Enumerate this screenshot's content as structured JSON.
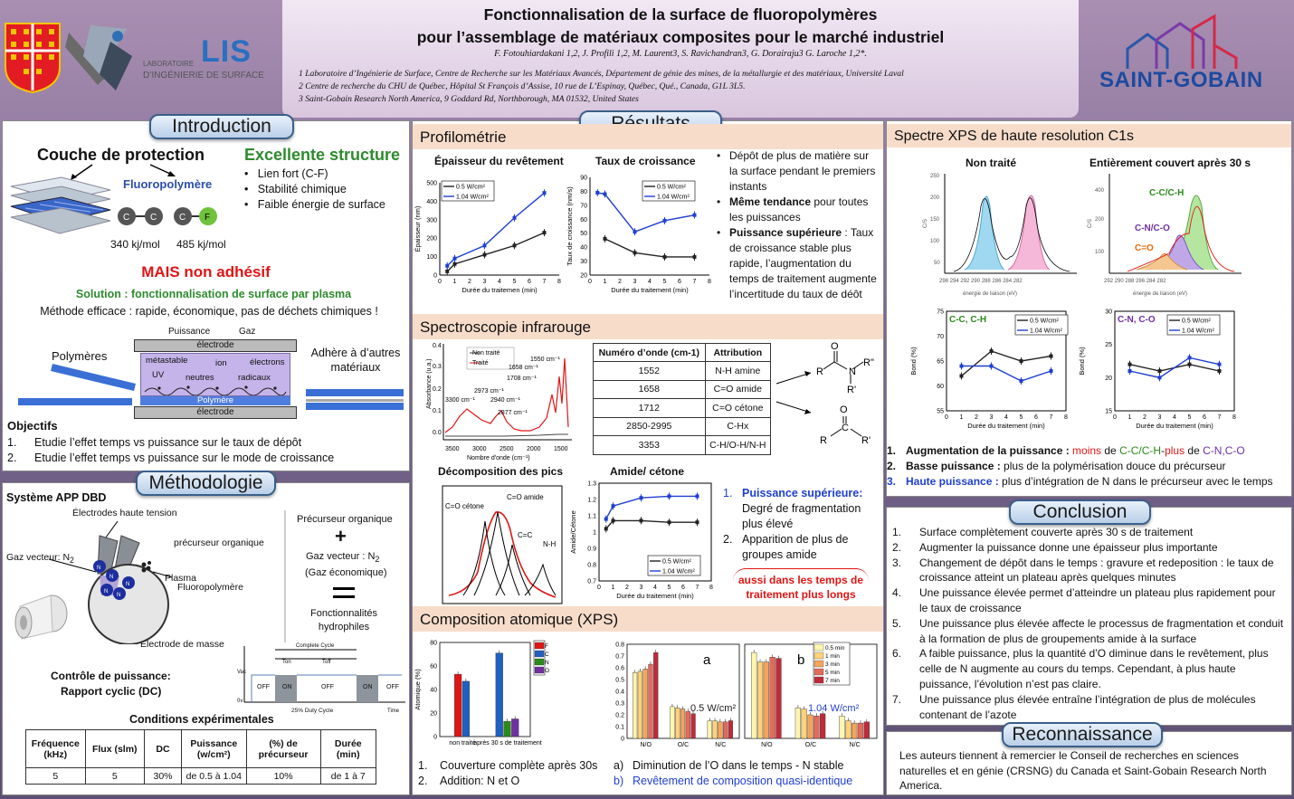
{
  "header": {
    "title1": "Fonctionnalisation de la surface de fluoropolymères",
    "title2": "pour l’assemblage de matériaux composites pour le marché industriel",
    "authors": "F. Fotouhiardakani 1,2, J. Profili 1,2, M. Laurent3, S. Ravichandran3, G. Dorairaju3 G. Laroche 1,2*.",
    "aff1": "1 Laboratoire d’Ingénierie de Surface, Centre de Recherche sur les Matériaux Avancés, Département de génie des mines, de la métallurgie et des matériaux, Université Laval",
    "aff2": "2 Centre de recherche du CHU de Québec, Hôpital St François d’Assise, 10 rue de L’Espinay, Québec, Qué., Canada, G1L 3L5.",
    "aff3": "3 Saint-Gobain Research North America, 9 Goddard Rd, Northborough, MA 01532, United States",
    "lis_small1": "LABORATOIRE",
    "lis_small2": "D’INGÉNIERIE DE SURFACE",
    "lis_big": "LIS",
    "sg": "SAINT-GOBAIN"
  },
  "intro": {
    "heading": "Introduction",
    "couche": "Couche de protection",
    "fluoro": "Fluoropolymère",
    "excellente": "Excellente structure",
    "bullets": [
      "Lien fort (C-F)",
      "Stabilité chimique",
      "Faible énergie de surface"
    ],
    "e1": "340 kj/mol",
    "e2": "485 kj/mol",
    "mais": "MAIS non adhésif",
    "solution": "Solution : fonctionnalisation de surface par plasma",
    "methode": "Méthode  efficace : rapide, économique,  pas de déchets chimiques !",
    "puissance": "Puissance",
    "gaz": "Gaz",
    "electrode": "électrode",
    "electrode2": "électrode",
    "metastable": "métastable",
    "ion": "ion",
    "electrons": "électrons",
    "uv": "UV",
    "neutres": "neutres",
    "radicaux": "radicaux",
    "polymere": "Polymère",
    "polymeres": "Polymères",
    "adhese": "Adhère à d’autres matériaux",
    "objectifs": "Objectifs",
    "obj": [
      {
        "n": "1.",
        "t": "Etudie l’effet temps vs puissance sur le taux de dépôt"
      },
      {
        "n": "2.",
        "t": "Etudie l’effet temps vs puissance sur le mode de croissance"
      }
    ]
  },
  "methodo": {
    "heading": "Méthodologie",
    "systeme": "Système APP DBD",
    "electrodes_ht": "Électrodes haute tension",
    "gaz_vecteur": "Gaz vecteur: N",
    "precurseur": "précurseur organique",
    "plasma": "Plasma",
    "fluoropoly": "Fluoropolymère",
    "masse": "Électrode de masse",
    "r_prec": "Précurseur organique",
    "r_gaz": "Gaz vecteur :  N",
    "r_eco": "(Gaz économique)",
    "r_fonc": "Fonctionnalités hydrophiles",
    "controle": "Contrôle de puissance:",
    "rapport": "Rapport cyclic (DC)",
    "complete": "Complete Cycle",
    "ton": "Ton",
    "toff": "Toff",
    "vac": "Vac",
    "ov": "0v",
    "time": "Time",
    "off": "OFF",
    "on": "ON",
    "duty": "25% Duty Cycle",
    "conditions": "Conditions expérimentales",
    "table_head": [
      "Fréquence (kHz)",
      "Flux (slm)",
      "DC",
      "Puissance (w/cm²)",
      "(%) de précurseur",
      "Durée (min)"
    ],
    "table_row": [
      "5",
      "5",
      "30%",
      "de 0.5 à 1.04",
      "10%",
      "de 1 à 7"
    ]
  },
  "resultats": {
    "heading": "Résultats",
    "profilo": "Profilométrie",
    "epaisseur_title": "Épaisseur du revêtement",
    "croissance_title": "Taux de croissance",
    "profilo_bullets": [
      {
        "b": "",
        "t": "Dépôt de plus de matière sur la surface pendant le premiers instants"
      },
      {
        "b": "Même tendance",
        "t": " pour toutes les puissances"
      },
      {
        "b": "Puissance supérieure",
        "t": " : Taux de croissance stable plus rapide, l’augmentation du temps de traitement augmente l’incertitude du taux de déôt"
      }
    ],
    "ir": "Spectroscopie infrarouge",
    "ir_table_head": [
      "Numéro d’onde (cm-1)",
      "Attribution"
    ],
    "ir_table": [
      [
        "1552",
        "N-H amine"
      ],
      [
        "1658",
        "C=O amide"
      ],
      [
        "1712",
        "C=O cétone"
      ],
      [
        "2850-2995",
        "C-Hx"
      ],
      [
        "3353",
        "C-H/O-H/N-H"
      ]
    ],
    "decomp": "Décomposition des pics",
    "amide": "Amide/ cétone",
    "amide_list": [
      {
        "n": "1.",
        "t": "Puissance supérieure:",
        "rest": "Degré de fragmentation plus élevé"
      },
      {
        "n": "2.",
        "t": "",
        "rest": "Apparition de plus de groupes amide"
      }
    ],
    "aussi": "aussi dans les temps de traitement plus longs",
    "xps": "Composition atomique (XPS)",
    "xps_notes": [
      {
        "n": "1.",
        "t": "Couverture complète après 30s"
      },
      {
        "n": "2.",
        "t": "Addition: N et O"
      }
    ],
    "xps_notes2": [
      {
        "n": "a)",
        "t": "Diminution de l’O dans le temps - N stable"
      },
      {
        "n": "b)",
        "t": "Revêtement de composition quasi-identique"
      }
    ],
    "c1s": "Spectre XPS de haute resolution C1s",
    "non_traite": "Non traité",
    "entierement": "Entièrement couvert après 30 s",
    "c1s_list": [
      {
        "n": "1.",
        "b": "Augmentation de la puissance :",
        "t": " moins de C-C/C-H-plus de C-N,C-O"
      },
      {
        "n": "2.",
        "b": "Basse puissance :",
        "t": " plus de la polymérisation douce du précurseur"
      },
      {
        "n": "3.",
        "b": "Haute puissance :",
        "t": " plus d’intégration de N dans le précurseur avec le temps"
      }
    ]
  },
  "conclusion": {
    "heading": "Conclusion",
    "items": [
      {
        "n": "1.",
        "t": "Surface complètement  couverte après 30 s de traitement"
      },
      {
        "n": "2.",
        "t": "Augmenter la puissance donne une épaisseur plus importante"
      },
      {
        "n": "3.",
        "t": "Changement de dépôt dans le temps : gravure et redeposition : le taux de croissance atteint un plateau après quelques minutes"
      },
      {
        "n": "4.",
        "t": "Une puissance élevée permet d’atteindre un plateau plus rapidement pour le taux de croissance"
      },
      {
        "n": "5.",
        "t": "Une puissance plus élevée affecte le processus de fragmentation et conduit à la formation de plus de groupements amide à la surface"
      },
      {
        "n": "6.",
        "t": "A faible puissance, plus la quantité d’O diminue dans le revêtement, plus celle de N augmente au cours du temps. Cependant, à plus haute puissance, l’évolution n’est pas claire."
      },
      {
        "n": "7.",
        "t": "Une puissance plus élevée entraîne l’intégration de plus de molécules contenant de l’azote"
      }
    ]
  },
  "reconnaissance": {
    "heading": "Reconnaissance",
    "text": "Les auteurs tiennent à remercier le Conseil de recherches en sciences naturelles et en génie (CRSNG) du Canada et Saint-Gobain Research North America."
  },
  "chart_data": [
    {
      "type": "line",
      "id": "epaisseur",
      "title": "Épaisseur du revêtement",
      "xlabel": "Durée du traitemen (min)",
      "ylabel": "Épaisseur (nm)",
      "ylim": [
        0,
        500
      ],
      "xlim": [
        0,
        8
      ],
      "series": [
        {
          "name": "0.5 W/cm²",
          "x": [
            0.5,
            1,
            3,
            5,
            7
          ],
          "y": [
            20,
            60,
            110,
            160,
            230
          ]
        },
        {
          "name": "1.04 W/cm²",
          "x": [
            0.5,
            1,
            3,
            5,
            7
          ],
          "y": [
            50,
            90,
            160,
            310,
            445
          ]
        }
      ]
    },
    {
      "type": "line",
      "id": "croissance",
      "title": "Taux de croissance",
      "xlabel": "Durée du traitement (min)",
      "ylabel": "Taux de croissance (nm/s)",
      "ylim": [
        20,
        90
      ],
      "xlim": [
        0,
        8
      ],
      "series": [
        {
          "name": "0.5 W/cm²",
          "x": [
            1,
            3,
            5,
            7
          ],
          "y": [
            46,
            36,
            33,
            33
          ]
        },
        {
          "name": "1.04 W/cm²",
          "x": [
            0.5,
            1,
            3,
            5,
            7
          ],
          "y": [
            79,
            78,
            51,
            59,
            63
          ]
        }
      ]
    },
    {
      "type": "line",
      "id": "amide",
      "title": "Amide/ cétone",
      "xlabel": "Durée du traitement (min)",
      "ylabel": "Amide/Cétone",
      "ylim": [
        0.7,
        1.3
      ],
      "xlim": [
        0,
        8
      ],
      "series": [
        {
          "name": "0.5 W/cm²",
          "x": [
            0.5,
            1,
            3,
            5,
            7
          ],
          "y": [
            1.02,
            1.07,
            1.07,
            1.06,
            1.06
          ]
        },
        {
          "name": "1.04 W/cm²",
          "x": [
            0.5,
            1,
            3,
            5,
            7
          ],
          "y": [
            1.08,
            1.16,
            1.21,
            1.22,
            1.22
          ]
        }
      ]
    },
    {
      "type": "line",
      "id": "bond_cc",
      "label": "C-C, C-H",
      "xlabel": "Durée du traitement (min)",
      "ylabel": "Bond (%)",
      "ylim": [
        55,
        75
      ],
      "xlim": [
        0,
        8
      ],
      "series": [
        {
          "name": "0.5 W/cm²",
          "x": [
            1,
            3,
            5,
            7
          ],
          "y": [
            62,
            67,
            65,
            66
          ]
        },
        {
          "name": "1.04 W/cm²",
          "x": [
            1,
            3,
            5,
            7
          ],
          "y": [
            64,
            64,
            61,
            63
          ]
        }
      ]
    },
    {
      "type": "line",
      "id": "bond_cn",
      "label": "C-N, C-O",
      "xlabel": "Durée du traitement (min)",
      "ylabel": "Bond (%)",
      "ylim": [
        15,
        30
      ],
      "xlim": [
        0,
        8
      ],
      "series": [
        {
          "name": "0.5 W/cm²",
          "x": [
            1,
            3,
            5,
            7
          ],
          "y": [
            22,
            21,
            22,
            21
          ]
        },
        {
          "name": "1.04 W/cm²",
          "x": [
            1,
            3,
            5,
            7
          ],
          "y": [
            21,
            20,
            23,
            22
          ]
        }
      ]
    },
    {
      "type": "bar",
      "id": "xps1",
      "ylabel": "Atomique (%)",
      "categories": [
        "non traité",
        "après 30 s de traitement"
      ],
      "legend": [
        "F",
        "C",
        "N",
        "O"
      ],
      "ylim": [
        0,
        80
      ],
      "series": [
        {
          "name": "F",
          "values": [
            53,
            0
          ]
        },
        {
          "name": "C",
          "values": [
            47,
            71
          ]
        },
        {
          "name": "N",
          "values": [
            0,
            13
          ]
        },
        {
          "name": "O",
          "values": [
            0,
            15
          ]
        }
      ]
    },
    {
      "type": "bar",
      "id": "xps_a",
      "label": "a",
      "note": "0.5 W/cm²",
      "categories": [
        "N/O",
        "O/C",
        "N/C"
      ],
      "ylim": [
        0,
        0.8
      ],
      "legend": [
        "0.5 min",
        "1 min",
        "3 min",
        "5 min",
        "7 min"
      ],
      "series": [
        {
          "name": "0.5 min",
          "values": [
            0.56,
            0.27,
            0.15
          ]
        },
        {
          "name": "1 min",
          "values": [
            0.57,
            0.26,
            0.15
          ]
        },
        {
          "name": "3 min",
          "values": [
            0.59,
            0.25,
            0.14
          ]
        },
        {
          "name": "5 min",
          "values": [
            0.63,
            0.23,
            0.14
          ]
        },
        {
          "name": "7 min",
          "values": [
            0.73,
            0.21,
            0.15
          ]
        }
      ]
    },
    {
      "type": "bar",
      "id": "xps_b",
      "label": "b",
      "note": "1.04 W/cm²",
      "categories": [
        "N/O",
        "O/C",
        "N/C"
      ],
      "ylim": [
        0,
        0.8
      ],
      "series": [
        {
          "name": "0.5 min",
          "values": [
            0.73,
            0.26,
            0.19
          ]
        },
        {
          "name": "1 min",
          "values": [
            0.65,
            0.25,
            0.15
          ]
        },
        {
          "name": "3 min",
          "values": [
            0.65,
            0.2,
            0.13
          ]
        },
        {
          "name": "5 min",
          "values": [
            0.69,
            0.19,
            0.13
          ]
        },
        {
          "name": "7 min",
          "values": [
            0.68,
            0.21,
            0.14
          ]
        }
      ]
    }
  ],
  "colors": {
    "black": "#222222",
    "blue": "#1f3fd0",
    "red": "#e01515",
    "green": "#2a8a1a",
    "orange": "#e46c0a",
    "purple": "#7030a0",
    "pink": "#ff3399"
  }
}
